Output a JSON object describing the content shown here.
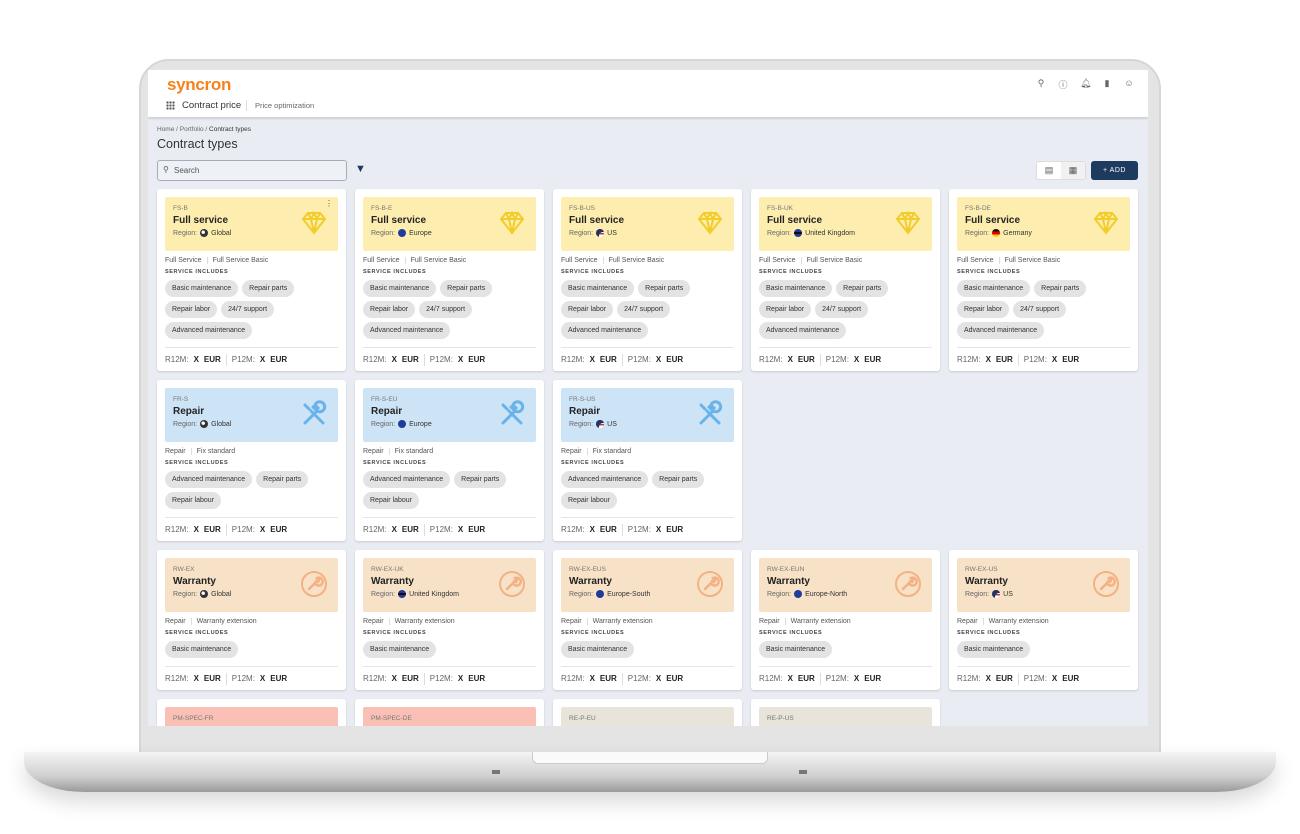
{
  "app": {
    "logo": "syncron",
    "name": "Contract price",
    "sub_nav": "Price optimization"
  },
  "top_icons": [
    "search-icon",
    "help-icon",
    "bell-icon",
    "chart-icon",
    "user-icon"
  ],
  "breadcrumb": {
    "home": "Home",
    "portfolio": "Portfolio",
    "current": "Contract types"
  },
  "page_title": "Contract types",
  "search": {
    "placeholder": "Search"
  },
  "add_label": "+ ADD",
  "labels": {
    "region": "Region:",
    "service_includes": "SERVICE INCLUDES",
    "r12m": "R12M:",
    "p12m": "P12M:",
    "price_value": "X",
    "currency": "EUR"
  },
  "colors": {
    "full_service": "#fdeeb0",
    "repair": "#cde3f6",
    "warranty": "#f7e2c7",
    "pm": "#fbc0b5",
    "re": "#e8e4da",
    "accent": "#1e3a5f",
    "brand": "#f7821b"
  },
  "cards": [
    {
      "code": "FS-B",
      "title": "Full service",
      "region": "Global",
      "flag": "globe",
      "type": "full",
      "tags": [
        "Full Service",
        "Full Service Basic"
      ],
      "services": [
        "Basic maintenance",
        "Repair parts",
        "Repair labor",
        "24/7 support",
        "Advanced maintenance"
      ],
      "menu": true
    },
    {
      "code": "FS-B-E",
      "title": "Full service",
      "region": "Europe",
      "flag": "eu",
      "type": "full",
      "tags": [
        "Full Service",
        "Full Service Basic"
      ],
      "services": [
        "Basic maintenance",
        "Repair parts",
        "Repair labor",
        "24/7 support",
        "Advanced maintenance"
      ]
    },
    {
      "code": "FS-B-US",
      "title": "Full service",
      "region": "US",
      "flag": "us",
      "type": "full",
      "tags": [
        "Full Service",
        "Full Service Basic"
      ],
      "services": [
        "Basic maintenance",
        "Repair parts",
        "Repair labor",
        "24/7 support",
        "Advanced maintenance"
      ]
    },
    {
      "code": "FS-B-UK",
      "title": "Full service",
      "region": "United Kingdom",
      "flag": "uk",
      "type": "full",
      "tags": [
        "Full Service",
        "Full Service Basic"
      ],
      "services": [
        "Basic maintenance",
        "Repair parts",
        "Repair labor",
        "24/7 support",
        "Advanced maintenance"
      ]
    },
    {
      "code": "FS-B-DE",
      "title": "Full service",
      "region": "Germany",
      "flag": "de",
      "type": "full",
      "tags": [
        "Full Service",
        "Full Service Basic"
      ],
      "services": [
        "Basic maintenance",
        "Repair parts",
        "Repair labor",
        "24/7 support",
        "Advanced maintenance"
      ]
    },
    {
      "code": "FR-S",
      "title": "Repair",
      "region": "Global",
      "flag": "globe",
      "type": "repair",
      "tags": [
        "Repair",
        "Fix standard"
      ],
      "services": [
        "Advanced maintenance",
        "Repair parts",
        "Repair labour"
      ]
    },
    {
      "code": "FR-S-EU",
      "title": "Repair",
      "region": "Europe",
      "flag": "eu",
      "type": "repair",
      "tags": [
        "Repair",
        "Fix standard"
      ],
      "services": [
        "Advanced maintenance",
        "Repair parts",
        "Repair labour"
      ]
    },
    {
      "code": "FR-S-US",
      "title": "Repair",
      "region": "US",
      "flag": "us",
      "type": "repair",
      "tags": [
        "Repair",
        "Fix standard"
      ],
      "services": [
        "Advanced maintenance",
        "Repair parts",
        "Repair labour"
      ]
    },
    {
      "code": "RW-EX",
      "title": "Warranty",
      "region": "Global",
      "flag": "globe",
      "type": "warranty",
      "tags": [
        "Repair",
        "Warranty extension"
      ],
      "services": [
        "Basic maintenance"
      ]
    },
    {
      "code": "RW-EX-UK",
      "title": "Warranty",
      "region": "United Kingdom",
      "flag": "uk",
      "type": "warranty",
      "tags": [
        "Repair",
        "Warranty extension"
      ],
      "services": [
        "Basic maintenance"
      ]
    },
    {
      "code": "RW-EX-EUS",
      "title": "Warranty",
      "region": "Europe-South",
      "flag": "eu",
      "type": "warranty",
      "tags": [
        "Repair",
        "Warranty extension"
      ],
      "services": [
        "Basic maintenance"
      ]
    },
    {
      "code": "RW-EX-EUN",
      "title": "Warranty",
      "region": "Europe-North",
      "flag": "eu",
      "type": "warranty",
      "tags": [
        "Repair",
        "Warranty extension"
      ],
      "services": [
        "Basic maintenance"
      ]
    },
    {
      "code": "RW-EX-US",
      "title": "Warranty",
      "region": "US",
      "flag": "us",
      "type": "warranty",
      "tags": [
        "Repair",
        "Warranty extension"
      ],
      "services": [
        "Basic maintenance"
      ]
    },
    {
      "code": "PM-SPEC-FR",
      "type": "pm"
    },
    {
      "code": "PM-SPEC-DE",
      "type": "pm"
    },
    {
      "code": "RE-P-EU",
      "type": "re"
    },
    {
      "code": "RE-P-US",
      "type": "re"
    }
  ]
}
